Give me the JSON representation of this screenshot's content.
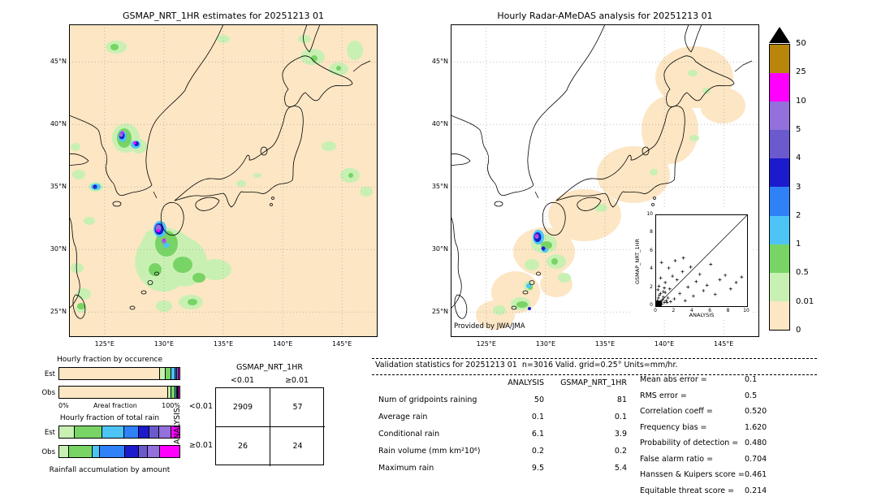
{
  "colorbar": {
    "labels_top_to_bottom": [
      "50",
      "25",
      "10",
      "5",
      "4",
      "3",
      "2",
      "1",
      "0.5",
      "0.01",
      "0"
    ],
    "colors_bottom_to_top": [
      "#fce6c4",
      "#c9f0b3",
      "#77d465",
      "#4cc5f6",
      "#2f81f7",
      "#1b1bcd",
      "#6a5acd",
      "#9370db",
      "#ff00ff",
      "#b8860b"
    ],
    "overflow_arrow_color": "#000000",
    "units": "mm/hr"
  },
  "chart_data": [
    {
      "type": "heatmap",
      "title": "GSMAP_NRT_1HR estimates for 20251213 01",
      "lat_ticks": [
        "45°N",
        "40°N",
        "35°N",
        "30°N",
        "25°N"
      ],
      "lon_ticks": [
        "125°E",
        "130°E",
        "135°E",
        "140°E",
        "145°E"
      ],
      "features": [
        "Widespread light rain (<1 mm/hr) over the East China Sea south and southeast of Kyushu (26-32N, 128-134E)",
        "Intense rain cells (>5-10 mm/hr cores with magenta pixels) near 30.5N 129.5E southwest of Kyushu",
        "Rain cluster with >5 mm/hr core over central Korea near 39N 126-127E",
        "Scattered light rain patches near Hokkaido, Sakhalin, east of Tohoku and near Taiwan"
      ]
    },
    {
      "type": "heatmap",
      "title": "Hourly Radar-AMeDAS analysis for 20251213 01",
      "credit": "Provided by JWA/JMA",
      "lat_ticks": [
        "45°N",
        "40°N",
        "35°N",
        "30°N",
        "25°N"
      ],
      "lon_ticks": [
        "125°E",
        "130°E",
        "135°E",
        "140°E",
        "145°E"
      ],
      "features": [
        "Radar coverage (0 mm/hr background) shown as peach band along the Japanese archipelago; white = no data",
        "Light-to-moderate rain south of Kyushu around 29-31N, 129-131E with small >2 mm/hr blue/purple cores",
        "Light rain patches near Okinawa (26N, 127-128E) and small spots near Hokkaido"
      ]
    },
    {
      "type": "bar",
      "stacked": true,
      "orientation": "horizontal",
      "title": "Hourly fraction by occurence",
      "xlabel": "Areal fraction",
      "x_range_labels": [
        "0%",
        "100%"
      ],
      "categories": [
        "<0.01",
        "0.01–0.5",
        "0.5–1",
        "1–2",
        "2–5",
        "5–10",
        "≥10"
      ],
      "colors": [
        "#fce6c4",
        "#c9f0b3",
        "#77d465",
        "#4cc5f6",
        "#2f81f7",
        "#9370db",
        "#ff00ff"
      ],
      "series": [
        {
          "name": "Est",
          "values": [
            0.84,
            0.045,
            0.05,
            0.03,
            0.015,
            0.012,
            0.008
          ]
        },
        {
          "name": "Obs",
          "values": [
            0.905,
            0.03,
            0.032,
            0.015,
            0.009,
            0.005,
            0.004
          ]
        }
      ]
    },
    {
      "type": "bar",
      "stacked": true,
      "orientation": "horizontal",
      "title": "Hourly fraction of total rain",
      "xlabel": "Rainfall accumulation by amount",
      "categories": [
        "0.01–0.5",
        "0.5–1",
        "1–2",
        "2–3",
        "3–4",
        "4–5",
        "5–10",
        "≥10"
      ],
      "colors": [
        "#c9f0b3",
        "#77d465",
        "#4cc5f6",
        "#2f81f7",
        "#1b1bcd",
        "#6a5acd",
        "#9370db",
        "#ff00ff"
      ],
      "series": [
        {
          "name": "Est",
          "values": [
            0.13,
            0.23,
            0.18,
            0.12,
            0.09,
            0.08,
            0.1,
            0.07
          ]
        },
        {
          "name": "Obs",
          "values": [
            0.08,
            0.2,
            0.06,
            0.21,
            0.11,
            0.08,
            0.1,
            0.16
          ]
        }
      ]
    },
    {
      "type": "scatter",
      "xlabel": "ANALYSIS",
      "ylabel": "GSMAP_NRT_1HR",
      "xlim": [
        0,
        10
      ],
      "ylim": [
        0,
        10
      ],
      "ticks": [
        0,
        2,
        4,
        6,
        8,
        10
      ],
      "identity_line": true,
      "marker": "+",
      "points": [
        [
          0.05,
          0.1
        ],
        [
          0.1,
          0.3
        ],
        [
          0.2,
          0.15
        ],
        [
          0.15,
          0.6
        ],
        [
          0.3,
          0.4
        ],
        [
          0.4,
          0.1
        ],
        [
          0.5,
          0.5
        ],
        [
          0.25,
          0.9
        ],
        [
          0.6,
          0.2
        ],
        [
          0.7,
          0.7
        ],
        [
          0.9,
          0.4
        ],
        [
          0.35,
          1.2
        ],
        [
          0.8,
          1.0
        ],
        [
          1.1,
          0.6
        ],
        [
          0.5,
          1.4
        ],
        [
          1.3,
          0.9
        ],
        [
          0.2,
          1.8
        ],
        [
          1.0,
          1.5
        ],
        [
          0.9,
          2.0
        ],
        [
          1.6,
          0.5
        ],
        [
          0.3,
          2.2
        ],
        [
          0.5,
          3.1
        ],
        [
          0.8,
          1.6
        ],
        [
          1.0,
          2.6
        ],
        [
          1.2,
          0.4
        ],
        [
          1.5,
          1.9
        ],
        [
          1.8,
          3.3
        ],
        [
          2.0,
          0.8
        ],
        [
          2.3,
          2.9
        ],
        [
          2.6,
          1.4
        ],
        [
          2.9,
          3.8
        ],
        [
          3.2,
          0.6
        ],
        [
          3.5,
          2.1
        ],
        [
          3.8,
          4.3
        ],
        [
          4.1,
          1.1
        ],
        [
          4.4,
          2.7
        ],
        [
          4.8,
          3.5
        ],
        [
          5.2,
          1.7
        ],
        [
          5.6,
          2.3
        ],
        [
          6.0,
          4.6
        ],
        [
          6.5,
          1.3
        ],
        [
          7.0,
          2.9
        ],
        [
          7.6,
          3.4
        ],
        [
          8.2,
          1.9
        ],
        [
          8.8,
          2.6
        ],
        [
          9.4,
          3.2
        ],
        [
          2.1,
          5.0
        ],
        [
          1.4,
          4.2
        ],
        [
          0.6,
          4.8
        ],
        [
          3.0,
          5.3
        ]
      ]
    },
    {
      "type": "table",
      "title": "GSMAP_NRT_1HR",
      "row_axis_label": "ANALYSIS",
      "col_headers": [
        "<0.01",
        "≥0.01"
      ],
      "row_headers": [
        "<0.01",
        "≥0.01"
      ],
      "values": [
        [
          "2909",
          "57"
        ],
        [
          "26",
          "24"
        ]
      ]
    },
    {
      "type": "table",
      "title": "Validation statistics for 20251213 01  n=3016 Valid. grid=0.25° Units=mm/hr.",
      "columns": [
        "ANALYSIS",
        "GSMAP_NRT_1HR"
      ],
      "rows": [
        [
          "Num of gridpoints raining",
          "50",
          "81"
        ],
        [
          "Average rain",
          "0.1",
          "0.1"
        ],
        [
          "Conditional rain",
          "6.1",
          "3.9"
        ],
        [
          "Rain volume (mm km²10⁶)",
          "0.2",
          "0.2"
        ],
        [
          "Maximum rain",
          "9.5",
          "5.4"
        ]
      ],
      "metrics": [
        {
          "label": "Mean abs error =",
          "value": "0.1"
        },
        {
          "label": "RMS error =",
          "value": "0.5"
        },
        {
          "label": "Correlation coeff =",
          "value": "0.520"
        },
        {
          "label": "Frequency bias =",
          "value": "1.620"
        },
        {
          "label": "Probability of detection =",
          "value": "0.480"
        },
        {
          "label": "False alarm ratio =",
          "value": "0.704"
        },
        {
          "label": "Hanssen & Kuipers score =",
          "value": "0.461"
        },
        {
          "label": "Equitable threat score =",
          "value": "0.214"
        }
      ]
    }
  ]
}
